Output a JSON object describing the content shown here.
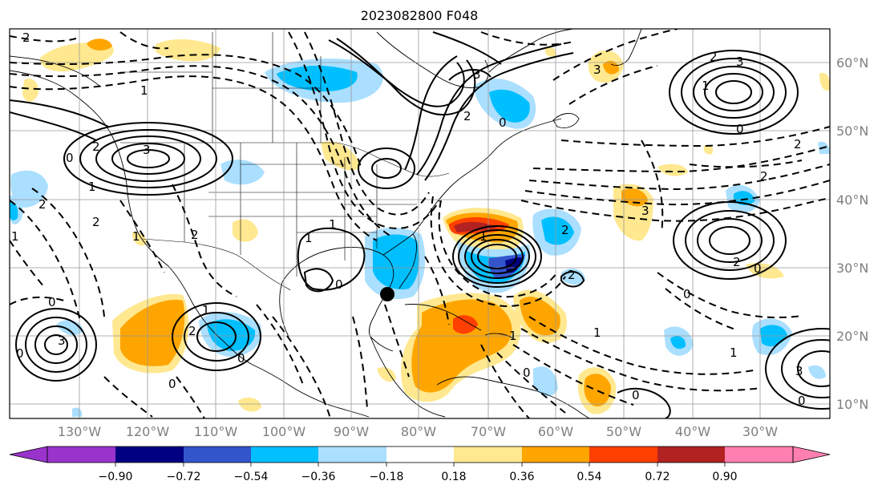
{
  "title": "2023082800 F048",
  "map": {
    "lon_range": [
      -140,
      -5
    ],
    "lat_range": [
      7,
      65
    ],
    "grid": true,
    "lat_ticks": [
      "60°N",
      "50°N",
      "40°N",
      "30°N",
      "20°N",
      "10°N"
    ],
    "lon_ticks": [
      "130°W",
      "120°W",
      "110°W",
      "100°W",
      "90°W",
      "80°W",
      "70°W",
      "60°W",
      "50°W",
      "40°W",
      "30°W"
    ],
    "marker": {
      "lon": -84.6,
      "lat": 25.9,
      "color": "#000000"
    }
  },
  "colorbar": {
    "ticks": [
      "−0.90",
      "−0.72",
      "−0.54",
      "−0.36",
      "−0.18",
      "0.18",
      "0.36",
      "0.54",
      "0.72",
      "0.90"
    ],
    "colors": [
      "#9933cc",
      "#000080",
      "#3355cc",
      "#00bfff",
      "#aadfff",
      "#ffffff",
      "#ffe88f",
      "#ffa500",
      "#ff4000",
      "#b22222",
      "#ff80b0"
    ]
  },
  "contour_labels": [
    "2",
    "1",
    "3",
    "2",
    "0",
    "2",
    "1",
    "2",
    "3",
    "2",
    "0",
    "2",
    "1",
    "3",
    "1",
    "0",
    "1",
    "2",
    "2",
    "1",
    "3",
    "2",
    "0",
    "2",
    "1",
    "0",
    "0",
    "0",
    "1",
    "3",
    "2",
    "0",
    "3",
    "2",
    "0",
    "1",
    "1",
    "0",
    "0",
    "2",
    "0",
    "1",
    "0",
    "3",
    "1"
  ]
}
